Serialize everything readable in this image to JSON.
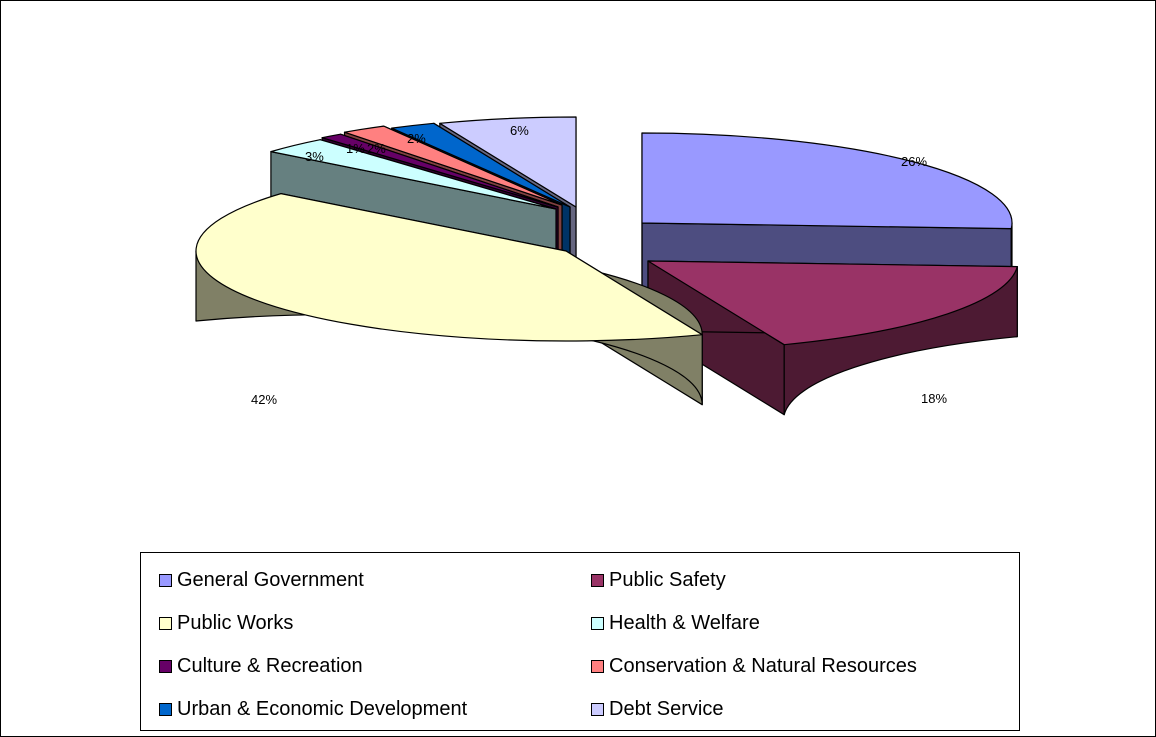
{
  "chart_data": {
    "type": "pie",
    "title": "",
    "categories": [
      "General Government",
      "Public Safety",
      "Public Works",
      "Health & Welfare",
      "Culture & Recreation",
      "Conservation & Natural Resources",
      "Urban & Economic Development",
      "Debt Service"
    ],
    "values": [
      26,
      18,
      42,
      3,
      1,
      2,
      2,
      6
    ],
    "data_labels": [
      "26%",
      "18%",
      "42%",
      "3%",
      "1%",
      "2%",
      "2%",
      "6%"
    ],
    "colors": [
      "#9999ff",
      "#993366",
      "#ffffcc",
      "#ccffff",
      "#660066",
      "#ff8080",
      "#0066cc",
      "#ccccff"
    ],
    "side_colors": [
      "#4d4d80",
      "#4d1a33",
      "#808066",
      "#668080",
      "#330033",
      "#804040",
      "#003366",
      "#666680"
    ],
    "exploded": true,
    "three_d": true,
    "legend_position": "bottom"
  }
}
